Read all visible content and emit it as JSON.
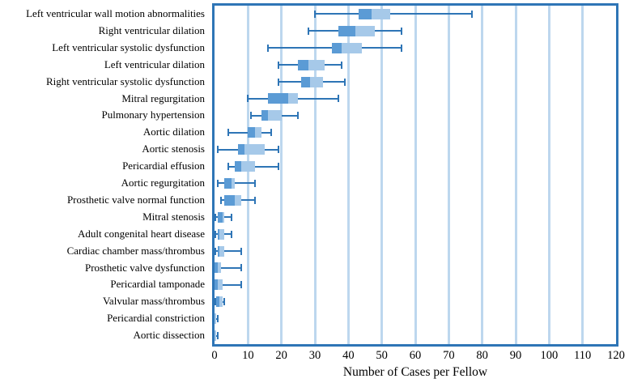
{
  "chart_data": {
    "type": "boxplot",
    "orientation": "horizontal",
    "xlabel": "Number of Cases per Fellow",
    "ylabel": "",
    "xlim": [
      0,
      120
    ],
    "x_ticks": [
      0,
      10,
      20,
      30,
      40,
      50,
      60,
      70,
      80,
      90,
      100,
      110,
      120
    ],
    "grid": "vertical-gridlines-every-10",
    "legend": "none",
    "categories": [
      {
        "label": "Left ventricular wall motion abnormalities",
        "min": 30,
        "q1": 43,
        "median": 47,
        "q3": 52.5,
        "max": 77
      },
      {
        "label": "Right ventricular dilation",
        "min": 28,
        "q1": 37,
        "median": 42,
        "q3": 48,
        "max": 56
      },
      {
        "label": "Left ventricular systolic dysfunction",
        "min": 16,
        "q1": 35,
        "median": 38,
        "q3": 44,
        "max": 56
      },
      {
        "label": "Left ventricular dilation",
        "min": 19,
        "q1": 25,
        "median": 28,
        "q3": 33,
        "max": 38
      },
      {
        "label": "Right ventricular systolic dysfunction",
        "min": 19,
        "q1": 26,
        "median": 28.5,
        "q3": 32.5,
        "max": 39
      },
      {
        "label": "Mitral regurgitation",
        "min": 10,
        "q1": 16,
        "median": 22,
        "q3": 25,
        "max": 37
      },
      {
        "label": "Pulmonary hypertension",
        "min": 11,
        "q1": 14,
        "median": 16,
        "q3": 20,
        "max": 25
      },
      {
        "label": "Aortic dilation",
        "min": 4,
        "q1": 10,
        "median": 12,
        "q3": 14,
        "max": 17
      },
      {
        "label": "Aortic stenosis",
        "min": 1,
        "q1": 7,
        "median": 9,
        "q3": 15,
        "max": 19
      },
      {
        "label": "Pericardial effusion",
        "min": 4,
        "q1": 6,
        "median": 8,
        "q3": 12,
        "max": 19
      },
      {
        "label": "Aortic regurgitation",
        "min": 1,
        "q1": 3,
        "median": 5,
        "q3": 6,
        "max": 12
      },
      {
        "label": "Prosthetic valve normal function",
        "min": 2,
        "q1": 3,
        "median": 6,
        "q3": 8,
        "max": 12
      },
      {
        "label": "Mitral stenosis",
        "min": 0,
        "q1": 1,
        "median": 2.5,
        "q3": 3,
        "max": 5
      },
      {
        "label": "Adult congenital heart disease",
        "min": 0,
        "q1": 1,
        "median": 1.5,
        "q3": 3,
        "max": 5
      },
      {
        "label": "Cardiac chamber mass/thrombus",
        "min": 0,
        "q1": 1,
        "median": 1.5,
        "q3": 3,
        "max": 8
      },
      {
        "label": "Prosthetic valve dysfunction",
        "min": 0,
        "q1": 0,
        "median": 1,
        "q3": 2,
        "max": 8
      },
      {
        "label": "Pericardial tamponade",
        "min": 0,
        "q1": 0,
        "median": 1,
        "q3": 2.5,
        "max": 8
      },
      {
        "label": "Valvular mass/thrombus",
        "min": 0,
        "q1": 0.5,
        "median": 1.5,
        "q3": 2.5,
        "max": 3
      },
      {
        "label": "Pericardial constriction",
        "min": 0,
        "q1": 0,
        "median": 0,
        "q3": 0.5,
        "max": 1
      },
      {
        "label": "Aortic dissection",
        "min": 0,
        "q1": 0,
        "median": 0,
        "q3": 0.5,
        "max": 1
      }
    ]
  },
  "colors": {
    "frame": "#2E75B6",
    "whisker": "#2E75B6",
    "box_dark": "#5B9BD5",
    "box_light": "#A6C9E9",
    "gridline": "#BDD7EE",
    "text": "#000000"
  }
}
